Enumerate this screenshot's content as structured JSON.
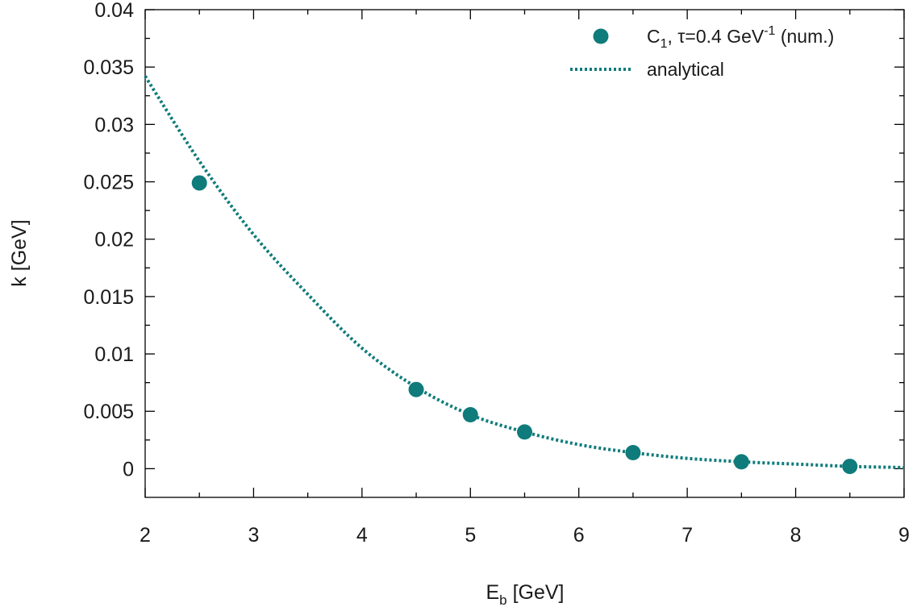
{
  "colors": {
    "series": "#0f7b7b"
  },
  "chart_data": {
    "type": "scatter",
    "xlabel": {
      "main": "E",
      "sub": "b",
      "rest": " [GeV]"
    },
    "ylabel": "k [GeV]",
    "xlim": [
      2,
      9
    ],
    "ylim": [
      -0.0025,
      0.04
    ],
    "xticks": [
      2,
      3,
      4,
      5,
      6,
      7,
      8,
      9
    ],
    "xtick_labels": [
      "2",
      "3",
      "4",
      "5",
      "6",
      "7",
      "8",
      "9"
    ],
    "yticks": [
      0,
      0.005,
      0.01,
      0.015,
      0.02,
      0.025,
      0.03,
      0.035,
      0.04
    ],
    "ytick_labels": [
      "0",
      "0.005",
      "0.01",
      "0.015",
      "0.02",
      "0.025",
      "0.03",
      "0.035",
      "0.04"
    ],
    "grid": false,
    "legend_position": "top-right",
    "series": [
      {
        "kind": "points",
        "legend": {
          "c": "C",
          "sub": "1",
          "mid": ", τ=0.4 GeV",
          "sup": "-1",
          "end": " (num.)"
        },
        "x": [
          2.5,
          4.5,
          5.0,
          5.5,
          6.5,
          7.5,
          8.5
        ],
        "y": [
          0.0249,
          0.0069,
          0.0047,
          0.0032,
          0.0014,
          0.0006,
          0.0002
        ]
      },
      {
        "kind": "dotted-line",
        "name": "analytical",
        "x": [
          2.0,
          2.5,
          3.0,
          3.5,
          4.0,
          4.5,
          5.0,
          5.5,
          6.0,
          6.5,
          7.0,
          7.5,
          8.0,
          8.5,
          9.0
        ],
        "y": [
          0.0342,
          0.0268,
          0.0204,
          0.0152,
          0.0105,
          0.0071,
          0.0047,
          0.0032,
          0.0021,
          0.0014,
          0.0009,
          0.0006,
          0.0004,
          0.0002,
          0.0001
        ]
      }
    ]
  }
}
